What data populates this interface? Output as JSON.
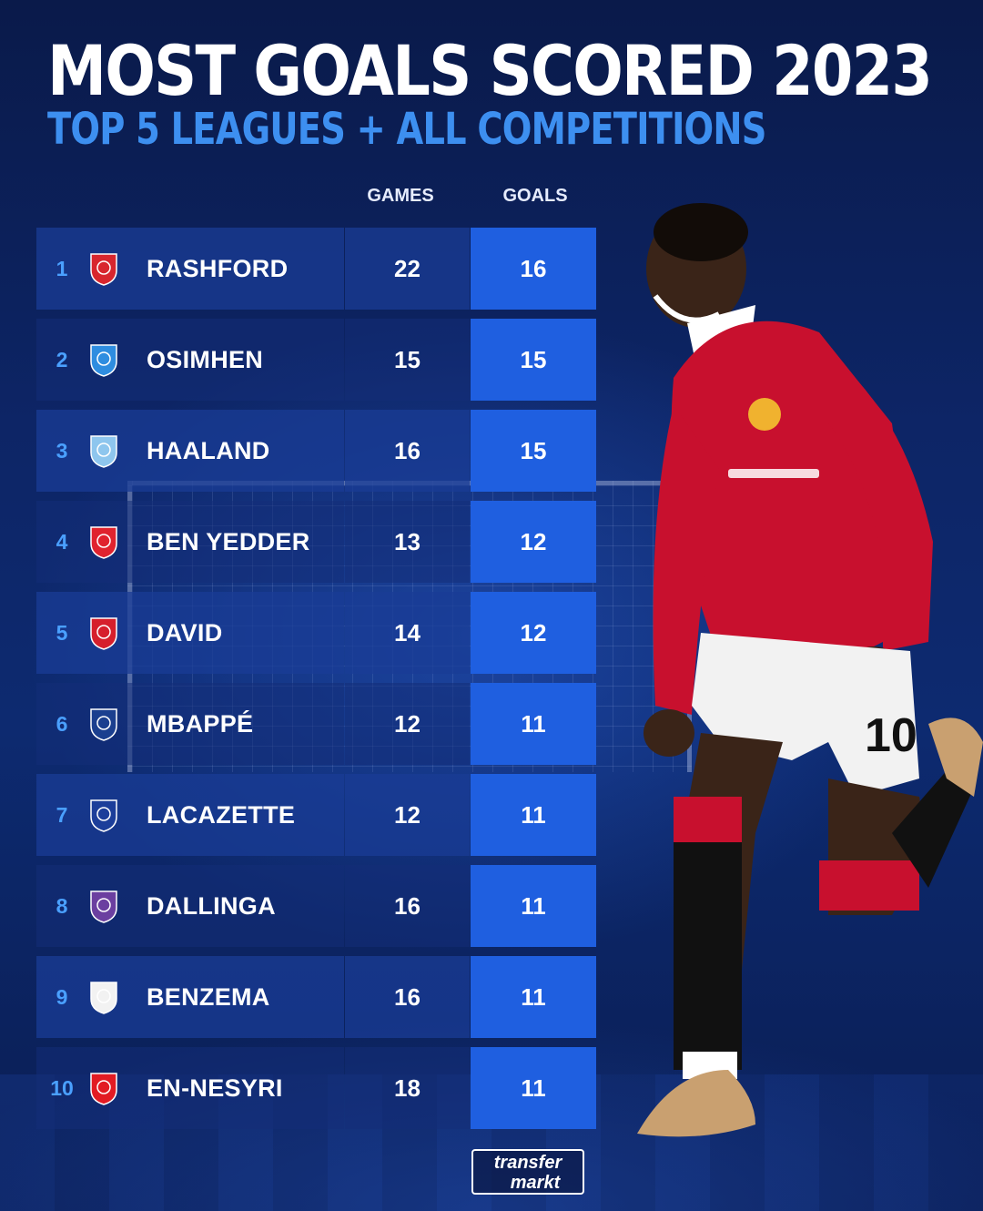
{
  "header": {
    "title": "MOST GOALS SCORED 2023",
    "subtitle": "TOP 5 LEAGUES + ALL COMPETITIONS"
  },
  "columns": {
    "games": "GAMES",
    "goals": "GOALS"
  },
  "rows": [
    {
      "rank": "1",
      "name": "RASHFORD",
      "games": "22",
      "goals": "16",
      "crest_icon": "manchester-united-crest-icon",
      "crest_color": "#d8262e"
    },
    {
      "rank": "2",
      "name": "OSIMHEN",
      "games": "15",
      "goals": "15",
      "crest_icon": "napoli-crest-icon",
      "crest_color": "#2e8de0"
    },
    {
      "rank": "3",
      "name": "HAALAND",
      "games": "16",
      "goals": "15",
      "crest_icon": "manchester-city-crest-icon",
      "crest_color": "#8ec6ee"
    },
    {
      "rank": "4",
      "name": "BEN YEDDER",
      "games": "13",
      "goals": "12",
      "crest_icon": "monaco-crest-icon",
      "crest_color": "#e0232e"
    },
    {
      "rank": "5",
      "name": "DAVID",
      "games": "14",
      "goals": "12",
      "crest_icon": "lille-crest-icon",
      "crest_color": "#d61f2c"
    },
    {
      "rank": "6",
      "name": "MBAPPÉ",
      "games": "12",
      "goals": "11",
      "crest_icon": "psg-crest-icon",
      "crest_color": "#1b3f8f"
    },
    {
      "rank": "7",
      "name": "LACAZETTE",
      "games": "12",
      "goals": "11",
      "crest_icon": "lyon-crest-icon",
      "crest_color": "#1c3e9a"
    },
    {
      "rank": "8",
      "name": "DALLINGA",
      "games": "16",
      "goals": "11",
      "crest_icon": "toulouse-crest-icon",
      "crest_color": "#6b3fa0"
    },
    {
      "rank": "9",
      "name": "BENZEMA",
      "games": "16",
      "goals": "11",
      "crest_icon": "real-madrid-crest-icon",
      "crest_color": "#f2f2f2"
    },
    {
      "rank": "10",
      "name": "EN-NESYRI",
      "games": "18",
      "goals": "11",
      "crest_icon": "sevilla-crest-icon",
      "crest_color": "#e21b23"
    }
  ],
  "logo": {
    "line1": "transfer",
    "line2": "markt"
  },
  "colors": {
    "background": "#0d2566",
    "subtitle_accent": "#3d8ff0",
    "goals_column": "#1f5fe0",
    "rank_text": "#4aa0ff"
  }
}
